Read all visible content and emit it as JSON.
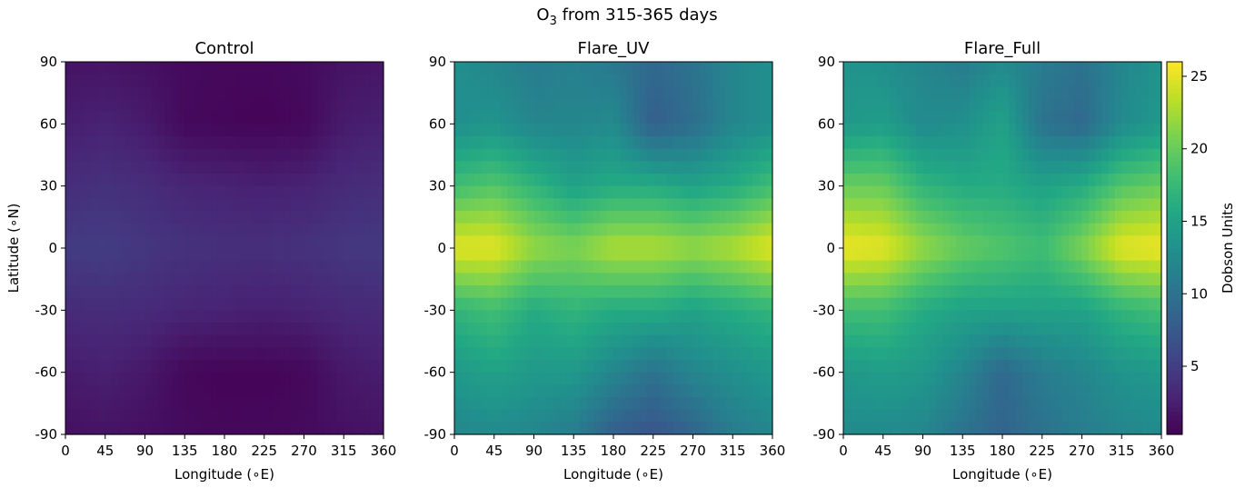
{
  "figure": {
    "suptitle_main": "O",
    "suptitle_sub": "3",
    "suptitle_rest": " from 315-365 days"
  },
  "chart_data": [
    {
      "type": "heatmap",
      "title": "Control",
      "xlabel": "Longitude (∘E)",
      "ylabel": "Latitude (∘N)",
      "xlim": [
        0,
        360
      ],
      "ylim": [
        -90,
        90
      ],
      "xticks": [
        "0",
        "45",
        "90",
        "135",
        "180",
        "225",
        "270",
        "315",
        "360"
      ],
      "yticks": [
        "90",
        "60",
        "30",
        "0",
        "-30",
        "-60",
        "-90"
      ],
      "lon": [
        0,
        45,
        90,
        135,
        180,
        225,
        270,
        315,
        360
      ],
      "lat": [
        90,
        60,
        30,
        0,
        -30,
        -60,
        -90
      ],
      "values": [
        [
          1.6,
          1.7,
          1.4,
          1.0,
          0.8,
          0.8,
          1.0,
          1.6,
          1.8
        ],
        [
          2.4,
          2.8,
          2.2,
          0.9,
          0.7,
          0.6,
          0.8,
          2.2,
          2.6
        ],
        [
          3.6,
          3.9,
          3.6,
          3.0,
          2.8,
          2.6,
          2.8,
          3.4,
          3.7
        ],
        [
          4.8,
          4.9,
          4.4,
          4.0,
          3.8,
          3.8,
          4.0,
          4.4,
          4.6
        ],
        [
          3.4,
          3.6,
          3.4,
          3.0,
          2.8,
          2.6,
          2.8,
          3.2,
          3.4
        ],
        [
          2.2,
          2.6,
          2.0,
          0.8,
          0.6,
          0.6,
          0.8,
          2.0,
          2.4
        ],
        [
          1.4,
          1.6,
          1.3,
          1.0,
          0.8,
          0.8,
          1.0,
          1.4,
          1.6
        ]
      ]
    },
    {
      "type": "heatmap",
      "title": "Flare_UV",
      "xlabel": "Longitude (∘E)",
      "ylabel": "",
      "xlim": [
        0,
        360
      ],
      "ylim": [
        -90,
        90
      ],
      "xticks": [
        "0",
        "45",
        "90",
        "135",
        "180",
        "225",
        "270",
        "315",
        "360"
      ],
      "yticks": [
        "90",
        "60",
        "30",
        "0",
        "-30",
        "-60",
        "-90"
      ],
      "lon": [
        0,
        45,
        90,
        135,
        180,
        225,
        270,
        315,
        360
      ],
      "lat": [
        90,
        60,
        30,
        0,
        -30,
        -60,
        -90
      ],
      "values": [
        [
          13.0,
          12.0,
          11.0,
          11.5,
          10.5,
          9.0,
          10.0,
          12.0,
          13.0
        ],
        [
          13.0,
          13.5,
          12.0,
          12.0,
          12.5,
          8.0,
          9.5,
          12.0,
          13.0
        ],
        [
          18.0,
          19.0,
          17.0,
          15.0,
          16.0,
          16.0,
          15.0,
          16.0,
          18.0
        ],
        [
          25.0,
          25.0,
          22.0,
          21.0,
          23.0,
          23.0,
          22.0,
          23.0,
          25.0
        ],
        [
          17.0,
          18.0,
          16.0,
          17.0,
          16.0,
          16.0,
          15.0,
          16.0,
          17.0
        ],
        [
          14.0,
          15.0,
          14.0,
          14.0,
          12.0,
          10.0,
          12.0,
          13.0,
          14.0
        ],
        [
          12.0,
          12.5,
          12.0,
          11.0,
          8.0,
          7.0,
          8.5,
          11.0,
          12.0
        ]
      ]
    },
    {
      "type": "heatmap",
      "title": "Flare_Full",
      "xlabel": "Longitude (∘E)",
      "ylabel": "",
      "xlim": [
        0,
        360
      ],
      "ylim": [
        -90,
        90
      ],
      "xticks": [
        "0",
        "45",
        "90",
        "135",
        "180",
        "225",
        "270",
        "315",
        "360"
      ],
      "yticks": [
        "90",
        "60",
        "30",
        "0",
        "-30",
        "-60",
        "-90"
      ],
      "lon": [
        0,
        45,
        90,
        135,
        180,
        225,
        270,
        315,
        360
      ],
      "lat": [
        90,
        60,
        30,
        0,
        -30,
        -60,
        -90
      ],
      "values": [
        [
          13.5,
          13.0,
          12.0,
          11.0,
          12.5,
          11.0,
          10.0,
          12.0,
          13.5
        ],
        [
          14.0,
          14.5,
          12.5,
          13.0,
          15.0,
          10.0,
          9.0,
          12.5,
          14.0
        ],
        [
          20.0,
          20.0,
          17.0,
          16.0,
          16.0,
          15.0,
          16.0,
          19.0,
          20.0
        ],
        [
          25.5,
          25.0,
          22.0,
          20.0,
          19.0,
          18.0,
          21.0,
          25.0,
          25.5
        ],
        [
          18.0,
          18.0,
          16.0,
          15.0,
          15.0,
          15.0,
          15.0,
          17.0,
          18.0
        ],
        [
          14.0,
          14.5,
          14.0,
          12.0,
          9.0,
          11.0,
          12.0,
          13.5,
          14.0
        ],
        [
          12.5,
          12.5,
          12.0,
          10.0,
          8.5,
          10.0,
          11.0,
          12.0,
          12.5
        ]
      ]
    }
  ],
  "colorbar": {
    "label": "Dobson Units",
    "range": [
      0.3,
      26
    ],
    "ticks": [
      "25",
      "20",
      "15",
      "10",
      "5"
    ],
    "tick_values": [
      25,
      20,
      15,
      10,
      5
    ],
    "colormap": "viridis"
  }
}
